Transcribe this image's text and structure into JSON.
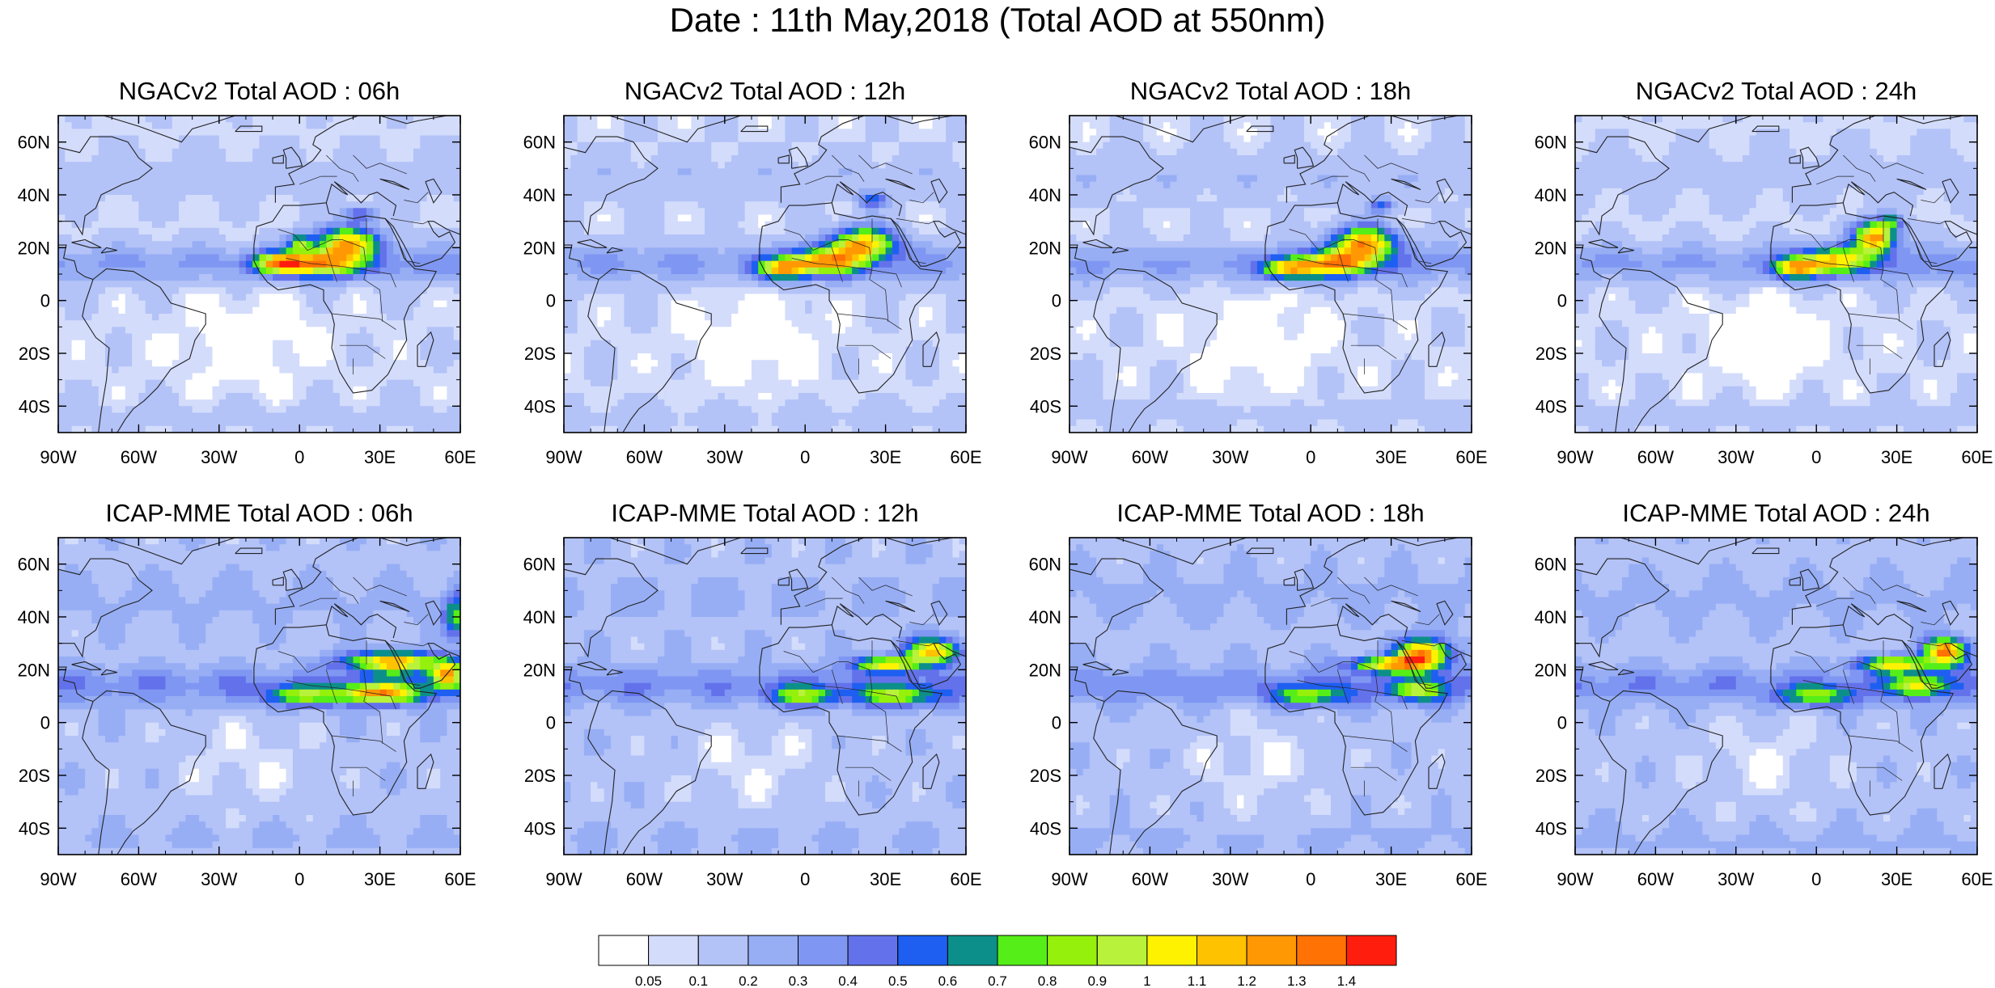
{
  "title": "Date : 11th May,2018 (Total AOD at 550nm)",
  "panels": [
    {
      "title": "NGACv2 Total AOD : 06h",
      "model": "NGACv2",
      "hour": "06h"
    },
    {
      "title": "NGACv2 Total AOD : 12h",
      "model": "NGACv2",
      "hour": "12h"
    },
    {
      "title": "NGACv2 Total AOD : 18h",
      "model": "NGACv2",
      "hour": "18h"
    },
    {
      "title": "NGACv2 Total AOD : 24h",
      "model": "NGACv2",
      "hour": "24h"
    },
    {
      "title": "ICAP-MME Total AOD : 06h",
      "model": "ICAP-MME",
      "hour": "06h"
    },
    {
      "title": "ICAP-MME Total AOD : 12h",
      "model": "ICAP-MME",
      "hour": "12h"
    },
    {
      "title": "ICAP-MME Total AOD : 18h",
      "model": "ICAP-MME",
      "hour": "18h"
    },
    {
      "title": "ICAP-MME Total AOD : 24h",
      "model": "ICAP-MME",
      "hour": "24h"
    }
  ],
  "axes": {
    "lon_range": [
      -90,
      60
    ],
    "lat_range": [
      -50,
      70
    ],
    "lon_ticks": [
      -90,
      -60,
      -30,
      0,
      30,
      60
    ],
    "lon_tick_labels": [
      "90W",
      "60W",
      "30W",
      "0",
      "30E",
      "60E"
    ],
    "lat_ticks": [
      60,
      40,
      20,
      0,
      -20,
      -40
    ],
    "lat_tick_labels": [
      "60N",
      "40N",
      "20N",
      "0",
      "20S",
      "40S"
    ]
  },
  "colorbar": {
    "labels": [
      "0.05",
      "0.1",
      "0.2",
      "0.3",
      "0.4",
      "0.5",
      "0.6",
      "0.7",
      "0.8",
      "0.9",
      "1",
      "1.1",
      "1.2",
      "1.3",
      "1.4"
    ],
    "colors": [
      "#ffffff",
      "#d3dcfb",
      "#b3c2f7",
      "#97aef5",
      "#7f97f2",
      "#6372eb",
      "#1e5ff2",
      "#0c8f8a",
      "#55ee18",
      "#95f00c",
      "#b9f23a",
      "#fff201",
      "#ffc201",
      "#ff9802",
      "#ff7203",
      "#ff1e0e"
    ]
  },
  "map_colors": {
    "land_outline": "#222222",
    "background_low": "#d6defb",
    "background_mid": "#b3c2f7"
  }
}
